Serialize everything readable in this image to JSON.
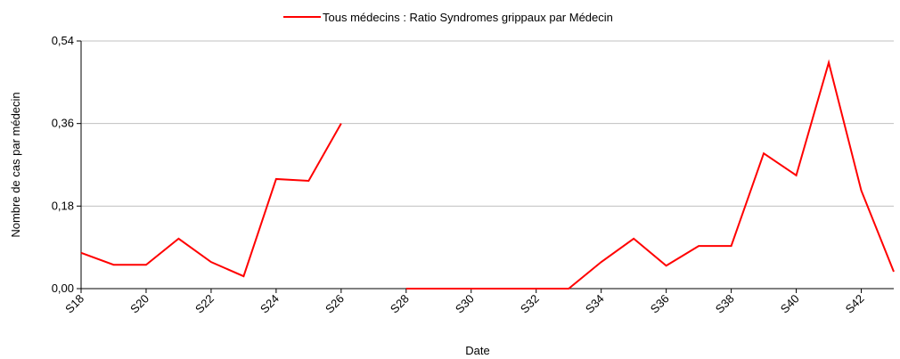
{
  "chart_data": {
    "type": "line",
    "xlabel": "Date",
    "ylabel": "Nombre de cas par médecin",
    "categories": [
      "S18",
      null,
      "S20",
      null,
      "S22",
      null,
      "S24",
      null,
      "S26",
      null,
      "S28",
      null,
      "S30",
      null,
      "S32",
      null,
      "S34",
      null,
      "S36",
      null,
      "S38",
      null,
      "S40",
      null,
      "S42",
      null
    ],
    "series": [
      {
        "name": "Tous médecins : Ratio Syndromes grippaux par Médecin",
        "color": "#ff0000",
        "values": [
          0.078,
          0.052,
          0.052,
          0.109,
          0.058,
          0.027,
          0.239,
          0.235,
          0.36,
          null,
          0,
          0,
          0,
          0,
          0,
          0,
          0.058,
          0.109,
          0.05,
          0.093,
          0.093,
          0.295,
          0.247,
          0.493,
          0.214,
          0.037
        ]
      }
    ],
    "ylim": [
      0,
      0.54
    ],
    "yticks": [
      {
        "value": 0,
        "label": "0,00"
      },
      {
        "value": 0.18,
        "label": "0,18"
      },
      {
        "value": 0.36,
        "label": "0,36"
      },
      {
        "value": 0.54,
        "label": "0,54"
      }
    ],
    "grid": true,
    "legend": "top"
  }
}
